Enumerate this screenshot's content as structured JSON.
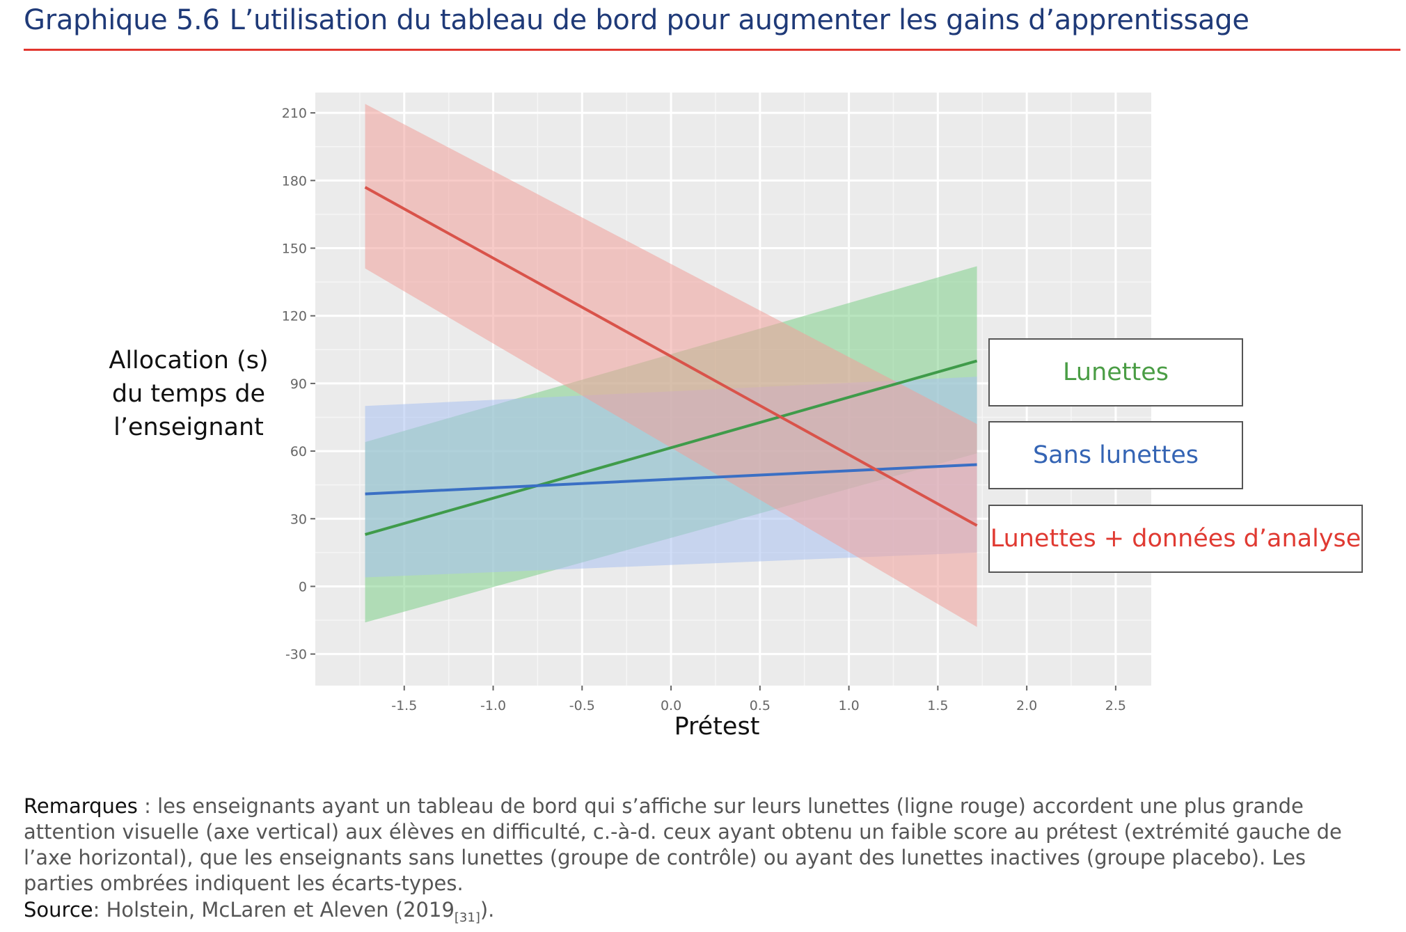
{
  "header": {
    "figure_number": "Graphique 5.6",
    "title": "L’utilisation du tableau de bord pour augmenter les gains d’apprentissage"
  },
  "chart_data": {
    "type": "line",
    "xlabel": "Prétest",
    "ylabel_lines": [
      "Allocation (s)",
      "du temps de",
      "l’enseignant"
    ],
    "xlim": [
      -2.0,
      2.7
    ],
    "ylim": [
      -44,
      219
    ],
    "x_ticks": [
      -1.5,
      -1.0,
      -0.5,
      0.0,
      0.5,
      1.0,
      1.5,
      2.0,
      2.5
    ],
    "x_tick_labels": [
      "-1.5",
      "-1.0",
      "-0.5",
      "0.0",
      "0.5",
      "1.0",
      "1.5",
      "2.0",
      "2.5"
    ],
    "y_ticks": [
      -30,
      0,
      30,
      60,
      90,
      120,
      150,
      180,
      210
    ],
    "y_tick_labels": [
      "-30",
      "0",
      "30",
      "60",
      "90",
      "120",
      "150",
      "180",
      "210"
    ],
    "grid": true,
    "series": [
      {
        "name": "Lunettes",
        "color": "#3f9b4a",
        "band_color": "#7fd08a",
        "x": [
          -1.72,
          1.72
        ],
        "y": [
          23,
          100
        ],
        "lower": [
          -16,
          59
        ],
        "upper": [
          64,
          142
        ]
      },
      {
        "name": "Sans lunettes",
        "color": "#3a6fc4",
        "band_color": "#a9c1f0",
        "x": [
          -1.72,
          1.72
        ],
        "y": [
          41,
          54
        ],
        "lower": [
          4,
          15
        ],
        "upper": [
          80,
          93
        ]
      },
      {
        "name": "Lunettes + données d’analyse",
        "color": "#d9534a",
        "band_color": "#f0a09a",
        "x": [
          -1.72,
          1.72
        ],
        "y": [
          177,
          27
        ],
        "lower": [
          141,
          -18
        ],
        "upper": [
          214,
          72
        ]
      }
    ],
    "legend_placement": "right"
  },
  "legend": {
    "items": [
      {
        "label": "Lunettes",
        "color": "#4a9d45"
      },
      {
        "label": "Sans lunettes",
        "color": "#3464b4"
      },
      {
        "label": "Lunettes + données d’analyse",
        "color": "#e03a32"
      }
    ]
  },
  "notes": {
    "label": "Remarques",
    "text": " : les enseignants ayant un tableau de bord qui s’affiche sur leurs lunettes (ligne rouge) accordent une plus grande attention visuelle (axe vertical) aux élèves en difficulté, c.-à-d. ceux ayant obtenu un faible score au prétest (extrémité gauche de l’axe horizontal), que les enseignants sans lunettes (groupe de contrôle) ou ayant des lunettes inactives (groupe placebo). Les parties ombrées indiquent les écarts-types."
  },
  "source": {
    "label": "Source",
    "text": ": Holstein, McLaren et Aleven (2019",
    "ref": "[31]",
    "end": ")."
  }
}
